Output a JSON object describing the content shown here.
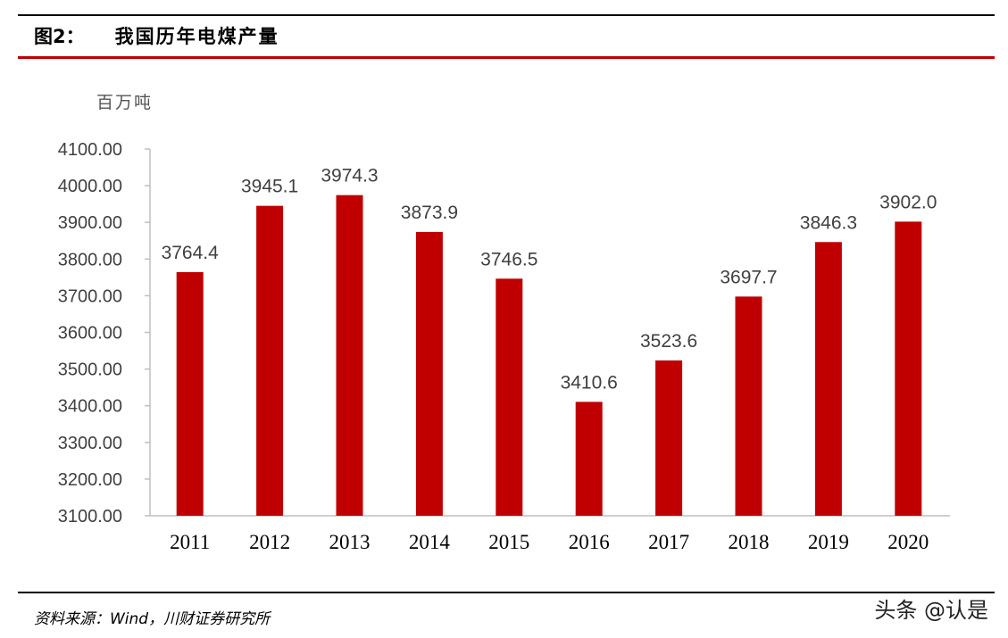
{
  "header": {
    "figure_label": "图2：",
    "figure_title": "我国历年电煤产量"
  },
  "footer": {
    "source": "资料来源：Wind，川财证券研究所",
    "watermark": "头条 @认是"
  },
  "colors": {
    "bar": "#c00000",
    "accent_rule": "#c00000",
    "axis": "#bfbfbf",
    "label_text": "#404040"
  },
  "chart_data": {
    "type": "bar",
    "title": "",
    "unit_label": "百万吨",
    "xlabel": "",
    "ylabel": "",
    "categories": [
      "2011",
      "2012",
      "2013",
      "2014",
      "2015",
      "2016",
      "2017",
      "2018",
      "2019",
      "2020"
    ],
    "values": [
      3764.4,
      3945.1,
      3974.3,
      3873.9,
      3746.5,
      3410.6,
      3523.6,
      3697.7,
      3846.3,
      3902.0
    ],
    "data_labels": [
      "3764.4",
      "3945.1",
      "3974.3",
      "3873.9",
      "3746.5",
      "3410.6",
      "3523.6",
      "3697.7",
      "3846.3",
      "3902.0"
    ],
    "ylim": [
      3100,
      4100
    ],
    "yticks": [
      3100,
      3200,
      3300,
      3400,
      3500,
      3600,
      3700,
      3800,
      3900,
      4000,
      4100
    ],
    "ytick_labels": [
      "3100.00",
      "3200.00",
      "3300.00",
      "3400.00",
      "3500.00",
      "3600.00",
      "3700.00",
      "3800.00",
      "3900.00",
      "4000.00",
      "4100.00"
    ],
    "grid": false,
    "legend": "none"
  }
}
